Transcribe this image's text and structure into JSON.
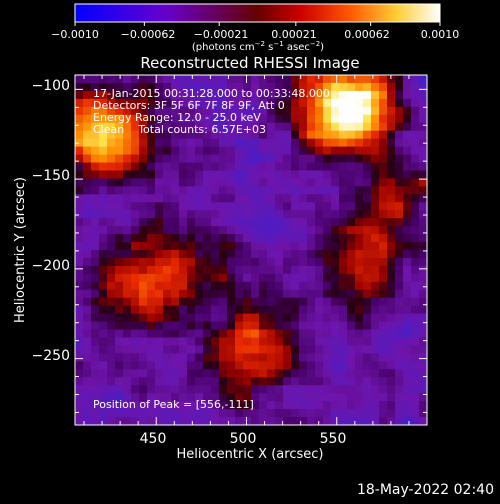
{
  "colorbar": {
    "ticks": [
      "−0.0010",
      "−0.00062",
      "−0.00021",
      "0.00021",
      "0.00062",
      "0.0010"
    ],
    "tick_values": [
      -0.001,
      -0.00062,
      -0.00021,
      0.00021,
      0.00062,
      0.001
    ],
    "range": [
      -0.001,
      0.001
    ],
    "units_prefix": "(photons cm",
    "units_sup1": "−2",
    "units_mid1": " s",
    "units_sup2": "−1",
    "units_mid2": " asec",
    "units_sup3": "−2",
    "units_suffix": ")",
    "stops": [
      "#0000ff",
      "#5500cc",
      "#8800aa",
      "#990000",
      "#ff2200",
      "#ff9900",
      "#ffffaa",
      "#ffffff"
    ]
  },
  "chart_data": {
    "type": "heatmap",
    "title": "Reconstructed RHESSI Image",
    "xlabel": "Heliocentric X (arcsec)",
    "ylabel": "Heliocentric Y (arcsec)",
    "xlim": [
      405,
      600
    ],
    "ylim": [
      -287,
      -92
    ],
    "x_ticks": [
      450,
      500,
      550
    ],
    "y_ticks": [
      -100,
      -150,
      -200,
      -250
    ],
    "x_tick_labels": [
      "450",
      "500",
      "550"
    ],
    "y_tick_labels": [
      "−100",
      "−150",
      "−200",
      "−250"
    ],
    "info_lines": [
      "17-Jan-2015 00:31:28.000 to 00:33:48.000",
      "Detectors: 3F 5F 6F 7F 8F 9F, Att 0",
      "Energy Range: 12.0 - 25.0 keV",
      "Clean    Total counts: 6.57E+03"
    ],
    "peak_text": "Position of Peak = [556,-111]",
    "peak": [
      556,
      -111
    ],
    "sources": [
      {
        "x": 556,
        "y": -111,
        "peak": 1.0
      },
      {
        "x": 420,
        "y": -125,
        "peak": 0.75
      },
      {
        "x": 440,
        "y": -210,
        "peak": 0.4
      },
      {
        "x": 500,
        "y": -245,
        "peak": 0.5
      },
      {
        "x": 560,
        "y": -200,
        "peak": 0.35
      },
      {
        "x": 585,
        "y": -170,
        "peak": 0.3
      },
      {
        "x": 470,
        "y": -195,
        "peak": 0.25
      }
    ]
  },
  "footer": {
    "timestamp": "18-May-2022 02:40"
  }
}
